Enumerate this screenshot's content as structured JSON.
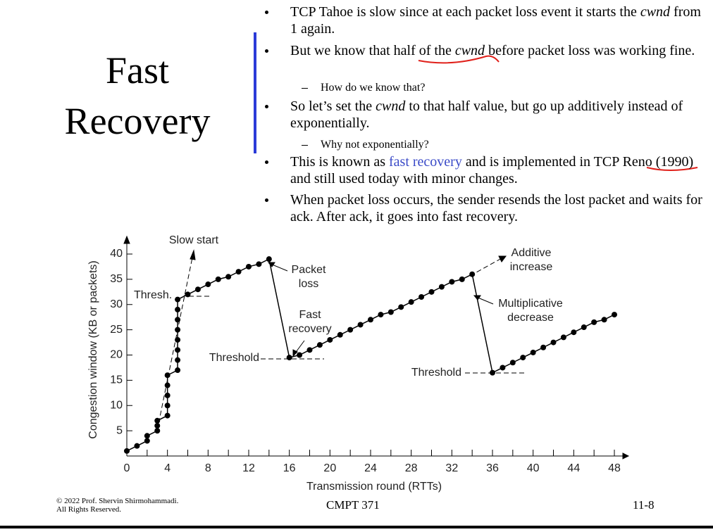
{
  "slide": {
    "title": [
      "Fast",
      "Recovery"
    ],
    "bullets": [
      {
        "level": 1,
        "runs": [
          {
            "text": "TCP Tahoe is slow since at each packet loss event it starts the "
          },
          {
            "text": "cwnd",
            "style": "italic"
          },
          {
            "text": " from 1 again."
          }
        ]
      },
      {
        "level": 1,
        "runs": [
          {
            "text": "But we know that half of the "
          },
          {
            "text": "cwnd",
            "style": "italic"
          },
          {
            "text": " before packet loss was working fine."
          }
        ]
      },
      {
        "level": 2,
        "runs": [
          {
            "text": "How do we know that?"
          }
        ]
      },
      {
        "level": 1,
        "runs": [
          {
            "text": "So let’s set the "
          },
          {
            "text": "cwnd",
            "style": "italic"
          },
          {
            "text": " to that half value, but go up additively instead of exponentially."
          }
        ]
      },
      {
        "level": 2,
        "runs": [
          {
            "text": "Why not exponentially?"
          }
        ]
      },
      {
        "level": 1,
        "runs": [
          {
            "text": "This is known as "
          },
          {
            "text": "fast recovery",
            "style": "link"
          },
          {
            "text": " and is implemented in TCP Reno (1990) and still used today with minor changes."
          }
        ]
      },
      {
        "level": 1,
        "runs": [
          {
            "text": "When packet loss occurs, the sender resends the lost packet and waits for ack. After ack, it goes into fast recovery."
          }
        ]
      }
    ]
  },
  "footer": {
    "copyright": [
      "© 2022 Prof. Shervin Shirmohammadi.",
      "All Rights Reserved."
    ],
    "course": "CMPT 371",
    "page": "11-8"
  },
  "chart_data": {
    "type": "line",
    "x_label": "Transmission round (RTTs)",
    "y_label": "Congestion window (KB or packets)",
    "color": "#000000",
    "x": [
      0,
      1,
      2,
      2,
      3,
      3,
      3,
      4,
      4,
      4,
      4,
      4,
      5,
      5,
      5,
      5,
      5,
      5,
      5,
      5,
      6,
      7,
      8,
      9,
      10,
      11,
      12,
      13,
      14,
      16,
      17,
      18,
      19,
      20,
      21,
      22,
      23,
      24,
      25,
      26,
      27,
      28,
      29,
      30,
      31,
      32,
      33,
      34,
      36,
      37,
      38,
      39,
      40,
      41,
      42,
      43,
      44,
      45,
      46,
      47,
      48
    ],
    "values": [
      1,
      2,
      3,
      4,
      5,
      6,
      7,
      8,
      10,
      12,
      14,
      16,
      17,
      19,
      21,
      23,
      25,
      27,
      29,
      31,
      32,
      33,
      34,
      35,
      35.5,
      36.5,
      37.5,
      38,
      39,
      19.5,
      20,
      21,
      22,
      23,
      24,
      25,
      26,
      27,
      28,
      28.5,
      29.5,
      30.5,
      31.5,
      32.5,
      33.5,
      34.5,
      35,
      36,
      16.5,
      17.5,
      18.5,
      19.5,
      20.5,
      21.5,
      22.5,
      23.5,
      24.5,
      25.5,
      26.5,
      27,
      28
    ],
    "xlim": [
      0,
      48
    ],
    "ylim": [
      0,
      40
    ],
    "xticks": [
      0,
      4,
      8,
      12,
      16,
      20,
      24,
      28,
      32,
      36,
      40,
      44,
      48
    ],
    "xticks_minor": [
      2,
      6,
      10,
      14,
      18,
      22,
      26,
      30,
      34,
      38,
      42,
      46
    ],
    "yticks": [
      5,
      10,
      15,
      20,
      25,
      30,
      35,
      40
    ],
    "annotations": [
      {
        "lines": [
          "Slow start"
        ]
      },
      {
        "lines": [
          "Thresh."
        ]
      },
      {
        "lines": [
          "Packet",
          "loss"
        ]
      },
      {
        "lines": [
          "Fast",
          "recovery"
        ]
      },
      {
        "lines": [
          "Threshold"
        ]
      },
      {
        "lines": [
          "Threshold"
        ]
      },
      {
        "lines": [
          "Additive",
          "increase"
        ]
      },
      {
        "lines": [
          "Multiplicative",
          "decrease"
        ]
      }
    ]
  }
}
